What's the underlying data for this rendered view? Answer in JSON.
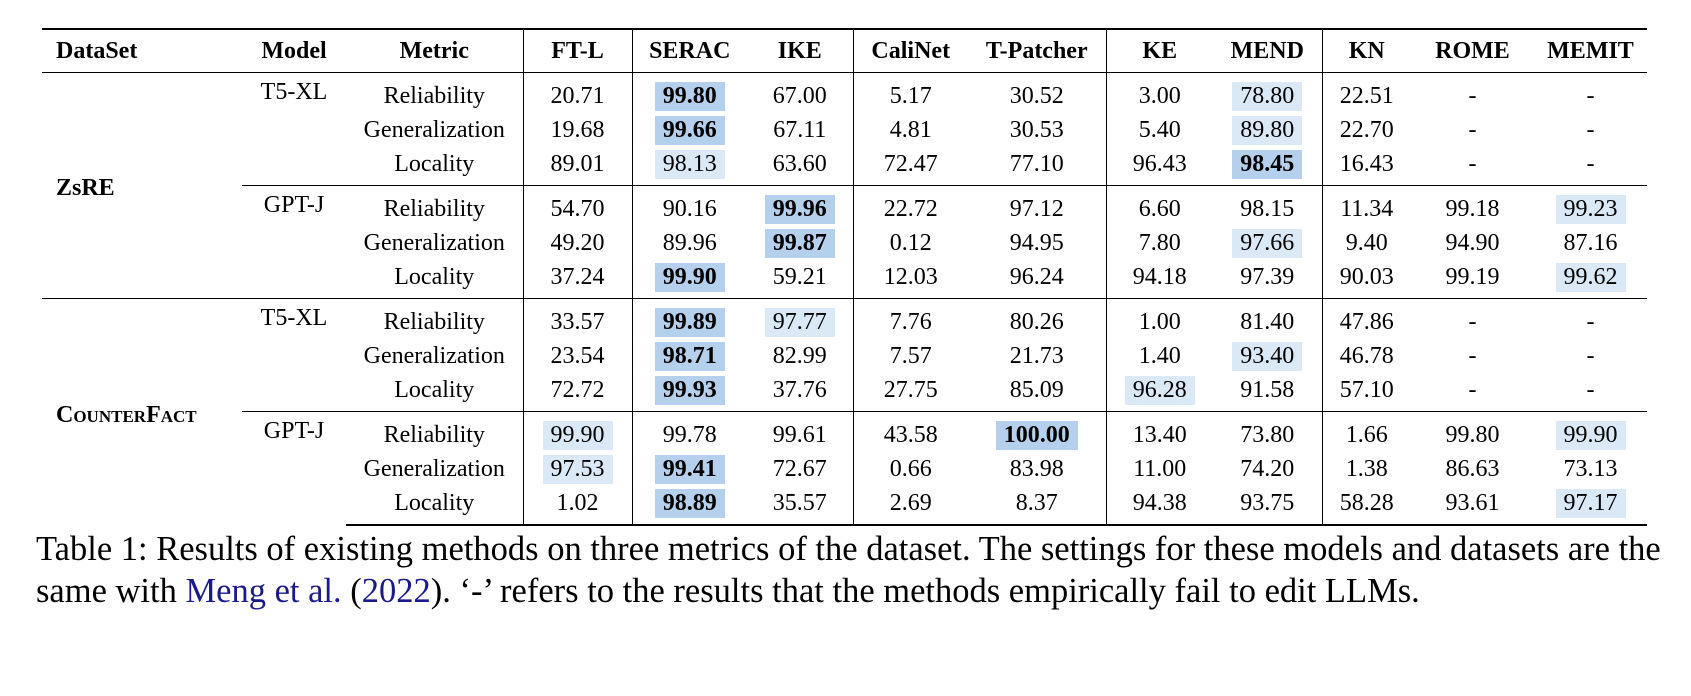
{
  "table": {
    "header": [
      "DataSet",
      "Model",
      "Metric",
      "FT-L",
      "SERAC",
      "IKE",
      "CaliNet",
      "T-Patcher",
      "KE",
      "MEND",
      "KN",
      "ROME",
      "MEMIT"
    ],
    "separators": [
      3,
      4,
      6,
      8,
      10
    ],
    "colors": {
      "best": "#b5d0ec",
      "second": "#dbe9f7"
    },
    "groups": [
      {
        "dataset": "ZsRE",
        "models": [
          {
            "model": "T5-XL",
            "rows": [
              {
                "metric": "Reliability",
                "values": [
                  "20.71",
                  "99.80",
                  "67.00",
                  "5.17",
                  "30.52",
                  "3.00",
                  "78.80",
                  "22.51",
                  "-",
                  "-"
                ],
                "best": [
                  1
                ],
                "second": [
                  6
                ]
              },
              {
                "metric": "Generalization",
                "values": [
                  "19.68",
                  "99.66",
                  "67.11",
                  "4.81",
                  "30.53",
                  "5.40",
                  "89.80",
                  "22.70",
                  "-",
                  "-"
                ],
                "best": [
                  1
                ],
                "second": [
                  6
                ]
              },
              {
                "metric": "Locality",
                "values": [
                  "89.01",
                  "98.13",
                  "63.60",
                  "72.47",
                  "77.10",
                  "96.43",
                  "98.45",
                  "16.43",
                  "-",
                  "-"
                ],
                "best": [
                  6
                ],
                "second": [
                  1
                ]
              }
            ]
          },
          {
            "model": "GPT-J",
            "rows": [
              {
                "metric": "Reliability",
                "values": [
                  "54.70",
                  "90.16",
                  "99.96",
                  "22.72",
                  "97.12",
                  "6.60",
                  "98.15",
                  "11.34",
                  "99.18",
                  "99.23"
                ],
                "best": [
                  2
                ],
                "second": [
                  9
                ]
              },
              {
                "metric": "Generalization",
                "values": [
                  "49.20",
                  "89.96",
                  "99.87",
                  "0.12",
                  "94.95",
                  "7.80",
                  "97.66",
                  "9.40",
                  "94.90",
                  "87.16"
                ],
                "best": [
                  2
                ],
                "second": [
                  6
                ]
              },
              {
                "metric": "Locality",
                "values": [
                  "37.24",
                  "99.90",
                  "59.21",
                  "12.03",
                  "96.24",
                  "94.18",
                  "97.39",
                  "90.03",
                  "99.19",
                  "99.62"
                ],
                "best": [
                  1
                ],
                "second": [
                  9
                ]
              }
            ]
          }
        ]
      },
      {
        "dataset": "CounterFact",
        "models": [
          {
            "model": "T5-XL",
            "rows": [
              {
                "metric": "Reliability",
                "values": [
                  "33.57",
                  "99.89",
                  "97.77",
                  "7.76",
                  "80.26",
                  "1.00",
                  "81.40",
                  "47.86",
                  "-",
                  "-"
                ],
                "best": [
                  1
                ],
                "second": [
                  2
                ]
              },
              {
                "metric": "Generalization",
                "values": [
                  "23.54",
                  "98.71",
                  "82.99",
                  "7.57",
                  "21.73",
                  "1.40",
                  "93.40",
                  "46.78",
                  "-",
                  "-"
                ],
                "best": [
                  1
                ],
                "second": [
                  6
                ]
              },
              {
                "metric": "Locality",
                "values": [
                  "72.72",
                  "99.93",
                  "37.76",
                  "27.75",
                  "85.09",
                  "96.28",
                  "91.58",
                  "57.10",
                  "-",
                  "-"
                ],
                "best": [
                  1
                ],
                "second": [
                  5
                ]
              }
            ]
          },
          {
            "model": "GPT-J",
            "rows": [
              {
                "metric": "Reliability",
                "values": [
                  "99.90",
                  "99.78",
                  "99.61",
                  "43.58",
                  "100.00",
                  "13.40",
                  "73.80",
                  "1.66",
                  "99.80",
                  "99.90"
                ],
                "best": [
                  4
                ],
                "second": [
                  0,
                  9
                ]
              },
              {
                "metric": "Generalization",
                "values": [
                  "97.53",
                  "99.41",
                  "72.67",
                  "0.66",
                  "83.98",
                  "11.00",
                  "74.20",
                  "1.38",
                  "86.63",
                  "73.13"
                ],
                "best": [
                  1
                ],
                "second": [
                  0
                ]
              },
              {
                "metric": "Locality",
                "values": [
                  "1.02",
                  "98.89",
                  "35.57",
                  "2.69",
                  "8.37",
                  "94.38",
                  "93.75",
                  "58.28",
                  "93.61",
                  "97.17"
                ],
                "best": [
                  1
                ],
                "second": [
                  9
                ]
              }
            ]
          }
        ]
      }
    ]
  },
  "caption": {
    "before": "Table 1: Results of existing methods on three metrics of the dataset. The settings for these models and datasets are the same with ",
    "cite_author": "Meng et al.",
    "between": " (",
    "cite_year": "2022",
    "after": "). ‘-’ refers to the results that the methods empirically fail to edit LLMs."
  }
}
